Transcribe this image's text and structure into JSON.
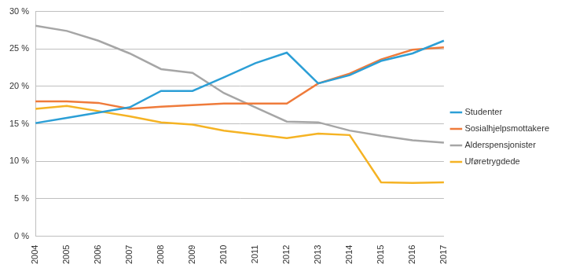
{
  "chart_data": {
    "type": "line",
    "categories": [
      "2004",
      "2005",
      "2006",
      "2007",
      "2008",
      "2009",
      "2010",
      "2011",
      "2012",
      "2013",
      "2014",
      "2015",
      "2016",
      "2017"
    ],
    "series": [
      {
        "name": "Studenter",
        "color": "#2c9fd6",
        "values": [
          15.1,
          15.8,
          16.5,
          17.2,
          19.4,
          19.4,
          21.2,
          23.1,
          24.5,
          20.4,
          21.5,
          23.4,
          24.4,
          26.1
        ]
      },
      {
        "name": "Sosialhjelpsmottakere",
        "color": "#ef7b3b",
        "values": [
          18.0,
          18.0,
          17.8,
          17.0,
          17.3,
          17.5,
          17.7,
          17.7,
          17.7,
          20.4,
          21.7,
          23.6,
          24.9,
          25.2
        ]
      },
      {
        "name": "Alderspensjonister",
        "color": "#a6a6a6",
        "values": [
          28.1,
          27.4,
          26.1,
          24.4,
          22.3,
          21.8,
          19.1,
          17.2,
          15.3,
          15.2,
          14.1,
          13.4,
          12.8,
          12.5
        ]
      },
      {
        "name": "Uføretrygdede",
        "color": "#f5b324",
        "values": [
          17.0,
          17.4,
          16.7,
          16.0,
          15.2,
          14.9,
          14.1,
          13.6,
          13.1,
          13.7,
          13.5,
          7.2,
          7.1,
          7.2
        ]
      }
    ],
    "ylim": [
      0,
      30
    ],
    "yticks": [
      {
        "value": 0,
        "label": "0 %"
      },
      {
        "value": 5,
        "label": "5 %"
      },
      {
        "value": 10,
        "label": "10 %"
      },
      {
        "value": 15,
        "label": "15 %"
      },
      {
        "value": 20,
        "label": "20 %"
      },
      {
        "value": 25,
        "label": "25 %"
      },
      {
        "value": 30,
        "label": "30 %"
      }
    ],
    "grid": true,
    "legend": "right"
  }
}
